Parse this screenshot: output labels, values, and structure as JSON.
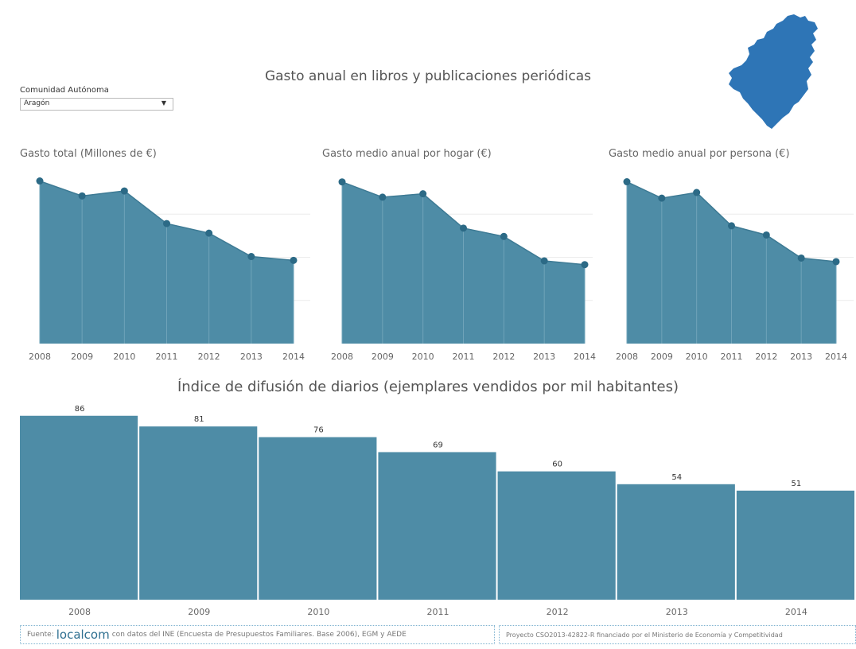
{
  "dashboard": {
    "title": "Gasto anual en libros y publicaciones periódicas"
  },
  "filter": {
    "label": "Comunidad Autónoma",
    "value": "Aragón"
  },
  "map": {
    "icon": "aragon-map-icon",
    "color": "#2e75b6"
  },
  "colors": {
    "area_fill": "#4e8ca6",
    "area_line": "#3d7a94",
    "marker": "#2c6a86",
    "bar": "#4e8ca6"
  },
  "footer": {
    "source_prefix": "Fuente:",
    "source_brand": "localcom",
    "source_text": "con datos del INE (Encuesta de Presupuestos Familiares. Base 2006), EGM y AEDE",
    "project_text": "Proyecto CSO2013-42822-R financiado por el Ministerio de Economía y Competitividad"
  },
  "chart_data": [
    {
      "type": "area",
      "title": "Gasto total (Millones de €)",
      "x": [
        "2008",
        "2009",
        "2010",
        "2011",
        "2012",
        "2013",
        "2014"
      ],
      "values": [
        42.4,
        38.5,
        39.8,
        31.3,
        28.8,
        22.7,
        21.7
      ],
      "ylim": [
        0,
        45
      ],
      "grid": true
    },
    {
      "type": "area",
      "title": "Gasto medio anual por hogar (€)",
      "x": [
        "2008",
        "2009",
        "2010",
        "2011",
        "2012",
        "2013",
        "2014"
      ],
      "values": [
        81.5,
        73.8,
        75.5,
        58.2,
        54.0,
        41.7,
        39.8
      ],
      "ylim": [
        0,
        87
      ],
      "grid": true
    },
    {
      "type": "area",
      "title": "Gasto medio anual por persona (€)",
      "x": [
        "2008",
        "2009",
        "2010",
        "2011",
        "2012",
        "2013",
        "2014"
      ],
      "values": [
        31.6,
        28.4,
        29.5,
        23.0,
        21.2,
        16.7,
        16.0
      ],
      "ylim": [
        0,
        33.7
      ],
      "grid": true
    },
    {
      "type": "bar",
      "title": "Índice de difusión de diarios (ejemplares vendidos por mil habitantes)",
      "categories": [
        "2008",
        "2009",
        "2010",
        "2011",
        "2012",
        "2013",
        "2014"
      ],
      "values": [
        86,
        81,
        76,
        69,
        60,
        54,
        51
      ],
      "ylim": [
        0,
        90
      ],
      "grid": false
    }
  ]
}
